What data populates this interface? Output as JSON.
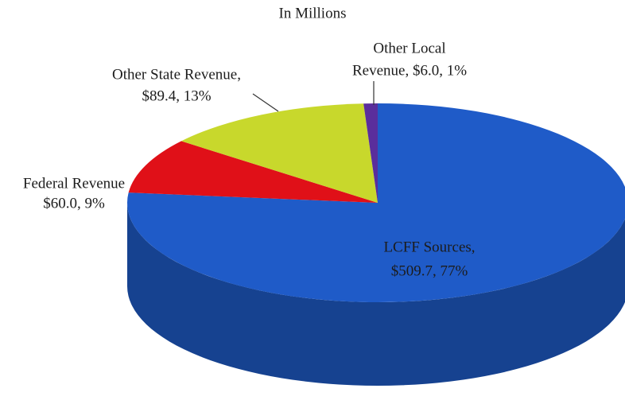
{
  "chart_data": {
    "type": "pie3d",
    "title": "In Millions",
    "values": [
      509.7,
      60.0,
      89.4,
      6.0
    ],
    "value_labels": [
      [
        "LCFF Sources,",
        "$509.7, 77%"
      ],
      [
        "Federal Revenue",
        "$60.0, 9%"
      ],
      [
        "Other State Revenue,",
        "$89.4, 13%"
      ],
      [
        "Other Local",
        "Revenue, $6.0, 1%"
      ]
    ],
    "colors": [
      "#1f5bc8",
      "#e01018",
      "#c8d82c",
      "#5a2e9c"
    ]
  }
}
